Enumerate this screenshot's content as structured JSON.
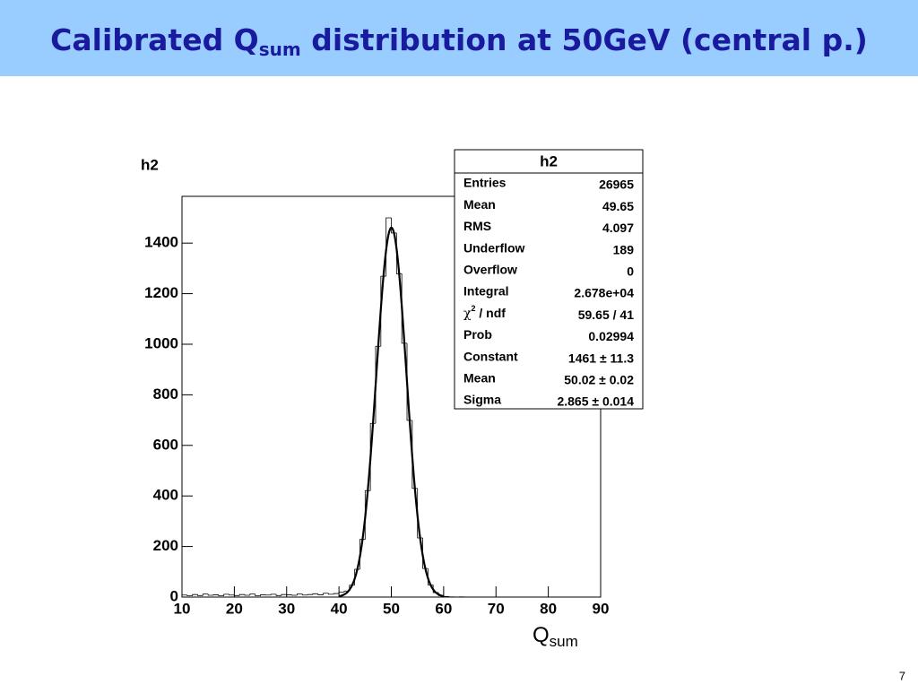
{
  "slide": {
    "title": {
      "before": "Calibrated Q",
      "sub": "sum",
      "after": " distribution at 50GeV (central p.)"
    },
    "page_number": "7"
  },
  "chart_data": {
    "type": "histogram",
    "title": "h2",
    "x_label": {
      "base": "Q",
      "sub": "sum"
    },
    "bins": [
      10,
      11,
      12,
      13,
      14,
      15,
      16,
      17,
      18,
      19,
      20,
      21,
      22,
      23,
      24,
      25,
      26,
      27,
      28,
      29,
      30,
      31,
      32,
      33,
      34,
      35,
      36,
      37,
      38,
      39,
      40,
      41,
      42,
      43,
      44,
      45,
      46,
      47,
      48,
      49,
      50,
      51,
      52,
      53,
      54,
      55,
      56,
      57,
      58,
      59,
      60,
      61,
      62,
      63,
      64,
      65,
      66,
      67,
      68,
      69,
      70,
      71,
      72,
      73,
      74,
      75,
      76,
      77,
      78,
      79,
      80,
      81,
      82,
      83,
      84,
      85,
      86,
      87,
      88,
      89,
      90
    ],
    "counts": [
      8,
      5,
      10,
      6,
      12,
      7,
      9,
      5,
      11,
      8,
      6,
      10,
      7,
      12,
      5,
      9,
      8,
      11,
      6,
      10,
      9,
      7,
      12,
      8,
      10,
      13,
      9,
      15,
      11,
      14,
      20,
      24,
      47,
      110,
      228,
      421,
      687,
      992,
      1269,
      1500,
      1440,
      1279,
      1004,
      699,
      430,
      234,
      113,
      48,
      18,
      6,
      2,
      1,
      0,
      1,
      0,
      0,
      0,
      0,
      0,
      0,
      0,
      0,
      0,
      0,
      0,
      0,
      0,
      0,
      0,
      0,
      0,
      0,
      0,
      0,
      0,
      0,
      0,
      0,
      0,
      0
    ],
    "color": "#000000",
    "fit": {
      "constant": 1461,
      "mean": 50.02,
      "sigma": 2.865
    },
    "xlim": [
      10,
      90
    ],
    "xticks": [
      10,
      20,
      30,
      40,
      50,
      60,
      70,
      80,
      90
    ],
    "ylim": [
      0,
      1585
    ],
    "yticks": [
      0,
      200,
      400,
      600,
      800,
      1000,
      1200,
      1400
    ]
  },
  "stats_box": {
    "title": "h2",
    "rows": [
      {
        "label": "Entries",
        "value": "26965"
      },
      {
        "label": "Mean",
        "value": "49.65"
      },
      {
        "label": "RMS",
        "value": "4.097"
      },
      {
        "label": "Underflow",
        "value": "189"
      },
      {
        "label": "Overflow",
        "value": "0"
      },
      {
        "label": "Integral",
        "value": "2.678e+04"
      },
      {
        "label": {
          "symbol": "χ",
          "sup": "2",
          "text": " / ndf"
        },
        "value": "59.65 / 41"
      },
      {
        "label": "Prob",
        "value": "0.02994"
      },
      {
        "label": "Constant",
        "value": "1461 ± 11.3"
      },
      {
        "label": "Mean",
        "value": "50.02 ± 0.02"
      },
      {
        "label": "Sigma",
        "value": "2.865 ± 0.014"
      }
    ]
  }
}
